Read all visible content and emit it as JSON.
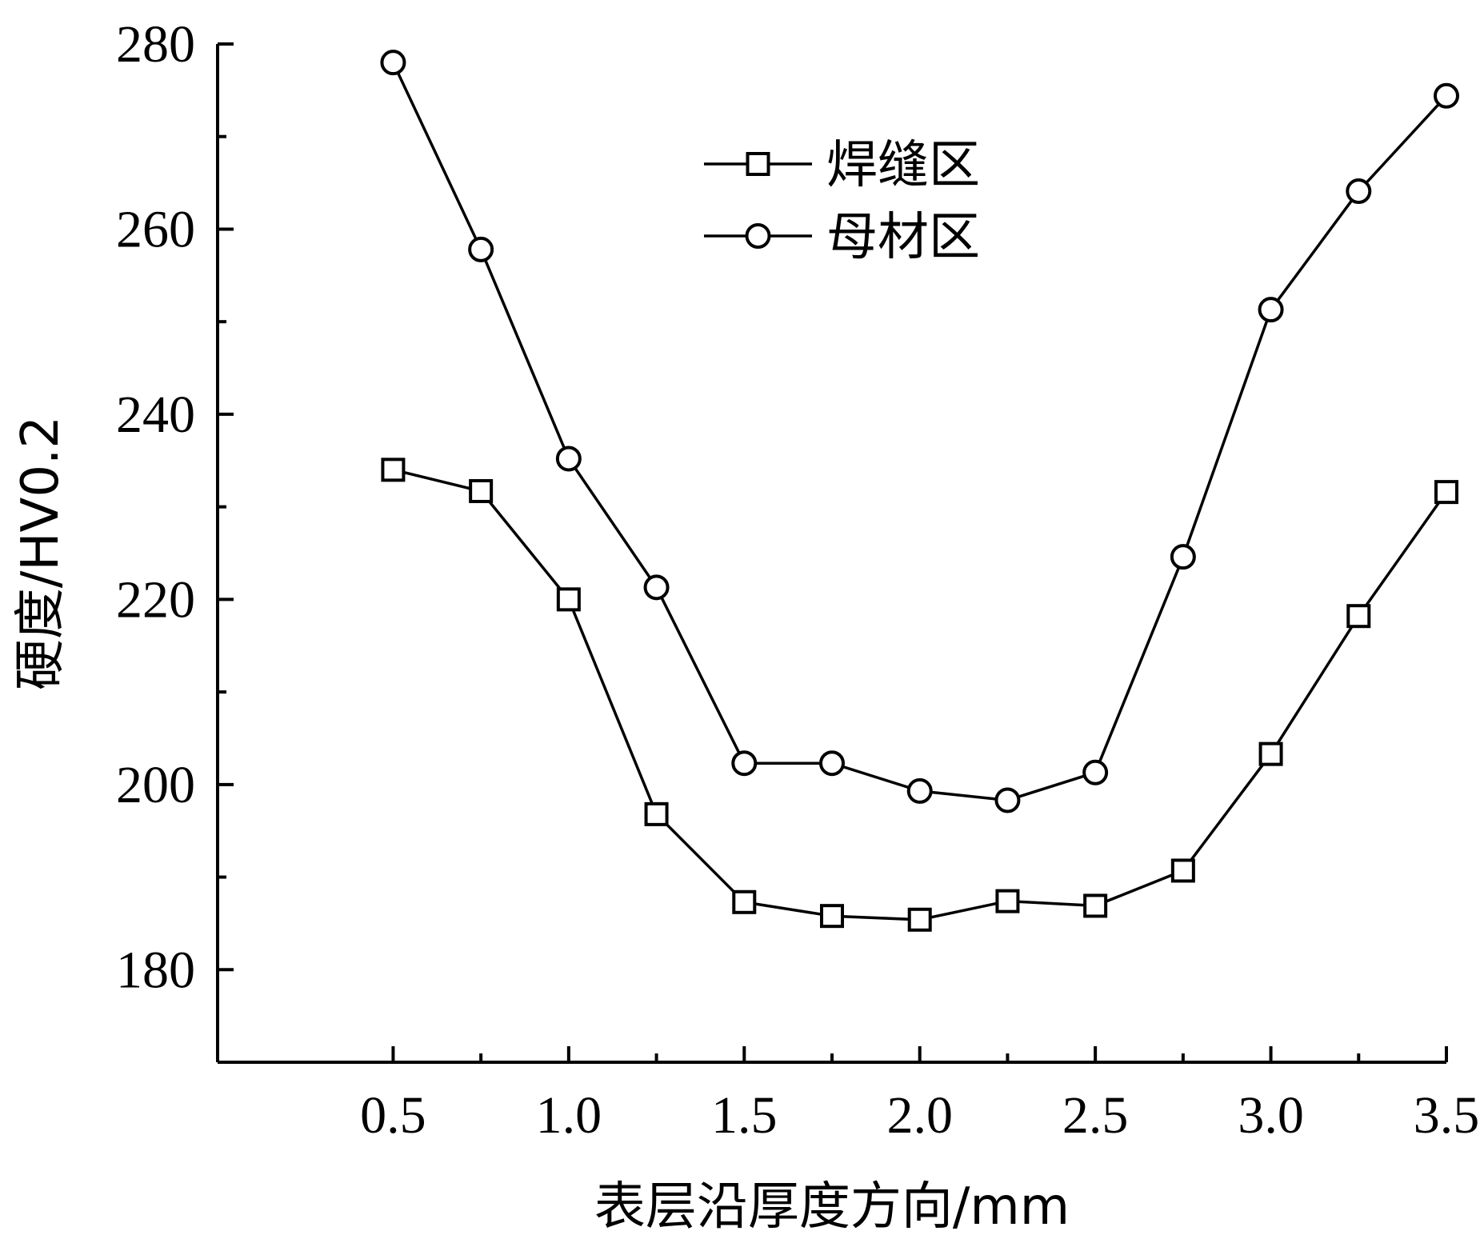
{
  "chart_data": {
    "type": "line",
    "xlabel": "表层沿厚度方向/mm",
    "ylabel": "硬度/HV0.2",
    "xlim": [
      0.0,
      3.5
    ],
    "ylim": [
      170,
      280
    ],
    "x_ticks": [
      0.5,
      1.0,
      1.5,
      2.0,
      2.5,
      3.0,
      3.5
    ],
    "x_tick_labels": [
      "0.5",
      "1.0",
      "1.5",
      "2.0",
      "2.5",
      "3.0",
      "3.5"
    ],
    "x_minor_ticks": [
      0.75,
      1.25,
      1.75,
      2.25,
      2.75,
      3.25
    ],
    "y_ticks": [
      180,
      200,
      220,
      240,
      260,
      280
    ],
    "y_tick_labels": [
      "180",
      "200",
      "220",
      "240",
      "260",
      "280"
    ],
    "y_minor_ticks": [
      190,
      210,
      230,
      250,
      270
    ],
    "grid": false,
    "legend_position": "top-center",
    "x": [
      0.5,
      0.75,
      1.0,
      1.25,
      1.5,
      1.75,
      2.0,
      2.25,
      2.5,
      2.75,
      3.0,
      3.25,
      3.5
    ],
    "series": [
      {
        "name": "焊缝区",
        "marker": "square",
        "color": "#000000",
        "values": [
          234.0,
          231.7,
          220.0,
          196.8,
          187.3,
          185.8,
          185.4,
          187.4,
          186.9,
          190.7,
          203.3,
          218.2,
          231.6
        ]
      },
      {
        "name": "母材区",
        "marker": "circle",
        "color": "#000000",
        "values": [
          278.0,
          257.8,
          235.2,
          221.3,
          202.3,
          202.3,
          199.3,
          198.3,
          201.3,
          224.6,
          251.3,
          264.1,
          274.4
        ]
      }
    ]
  }
}
